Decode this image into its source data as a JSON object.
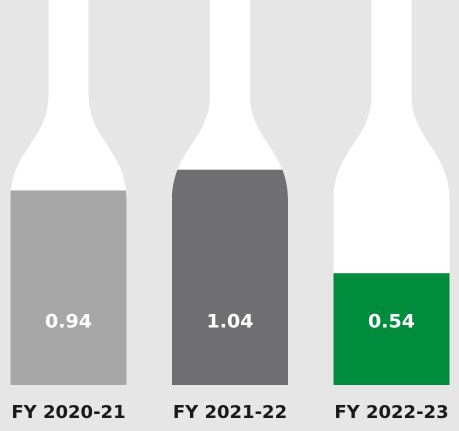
{
  "chart_data": {
    "type": "bottle",
    "categories": [
      "FY 2020-21",
      "FY 2021-22",
      "FY 2022-23"
    ],
    "values": [
      0.94,
      1.04,
      0.54
    ],
    "colors": [
      "#a7a7a8",
      "#6f6f72",
      "#008c3c"
    ]
  }
}
